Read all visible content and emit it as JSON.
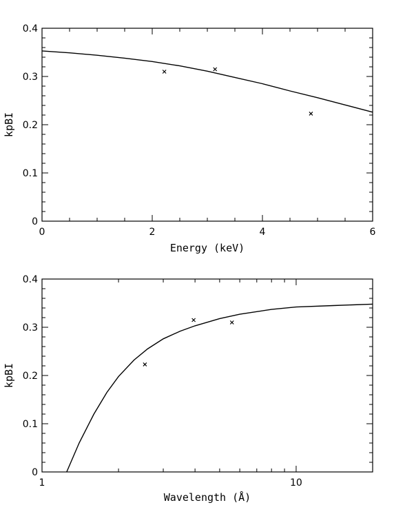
{
  "chart_data": [
    {
      "type": "scatter",
      "xlabel": "Energy (keV)",
      "ylabel": "kpBI",
      "xlim": [
        0,
        6
      ],
      "ylim": [
        0,
        0.4
      ],
      "x_scale": "linear",
      "x_major_ticks": [
        0,
        2,
        4,
        6
      ],
      "x_minor_ticks": [
        0.5,
        1,
        1.5,
        2.5,
        3,
        3.5,
        4.5,
        5,
        5.5
      ],
      "y_major_ticks": [
        0,
        0.1,
        0.2,
        0.3,
        0.4
      ],
      "y_minor_ticks": [
        0.02,
        0.04,
        0.06,
        0.08,
        0.12,
        0.14,
        0.16,
        0.18,
        0.22,
        0.24,
        0.26,
        0.28,
        0.32,
        0.34,
        0.36,
        0.38
      ],
      "x_tick_labels": [
        "0",
        "2",
        "4",
        "6"
      ],
      "y_tick_labels": [
        "0",
        "0.1",
        "0.2",
        "0.3",
        "0.4"
      ],
      "points": [
        {
          "x": 2.22,
          "y": 0.31
        },
        {
          "x": 3.14,
          "y": 0.315
        },
        {
          "x": 4.88,
          "y": 0.223
        }
      ],
      "curve": {
        "x": [
          0,
          0.5,
          1,
          1.5,
          2,
          2.5,
          3,
          3.5,
          4,
          4.5,
          5,
          5.5,
          6
        ],
        "y": [
          0.353,
          0.349,
          0.344,
          0.338,
          0.331,
          0.322,
          0.311,
          0.298,
          0.285,
          0.27,
          0.256,
          0.241,
          0.226
        ]
      },
      "grid": false
    },
    {
      "type": "scatter",
      "xlabel": "Wavelength (Å)",
      "ylabel": "kpBI",
      "xlim": [
        1,
        20
      ],
      "ylim": [
        0,
        0.4
      ],
      "x_scale": "log",
      "x_major_ticks": [
        1,
        10
      ],
      "x_minor_ticks": [
        2,
        3,
        4,
        5,
        6,
        7,
        8,
        9,
        20
      ],
      "y_major_ticks": [
        0,
        0.1,
        0.2,
        0.3,
        0.4
      ],
      "y_minor_ticks": [
        0.02,
        0.04,
        0.06,
        0.08,
        0.12,
        0.14,
        0.16,
        0.18,
        0.22,
        0.24,
        0.26,
        0.28,
        0.32,
        0.34,
        0.36,
        0.38
      ],
      "x_tick_labels": [
        "1",
        "10"
      ],
      "y_tick_labels": [
        "0",
        "0.1",
        "0.2",
        "0.3",
        "0.4"
      ],
      "points": [
        {
          "x": 2.54,
          "y": 0.223
        },
        {
          "x": 3.95,
          "y": 0.315
        },
        {
          "x": 5.59,
          "y": 0.31
        }
      ],
      "curve": {
        "x": [
          1.25,
          1.4,
          1.6,
          1.8,
          2.0,
          2.3,
          2.6,
          3.0,
          3.5,
          4.0,
          5.0,
          6.0,
          8.0,
          10,
          14,
          20
        ],
        "y": [
          0.0,
          0.06,
          0.12,
          0.165,
          0.198,
          0.232,
          0.255,
          0.276,
          0.292,
          0.303,
          0.318,
          0.327,
          0.337,
          0.342,
          0.345,
          0.348
        ]
      },
      "grid": false
    }
  ]
}
